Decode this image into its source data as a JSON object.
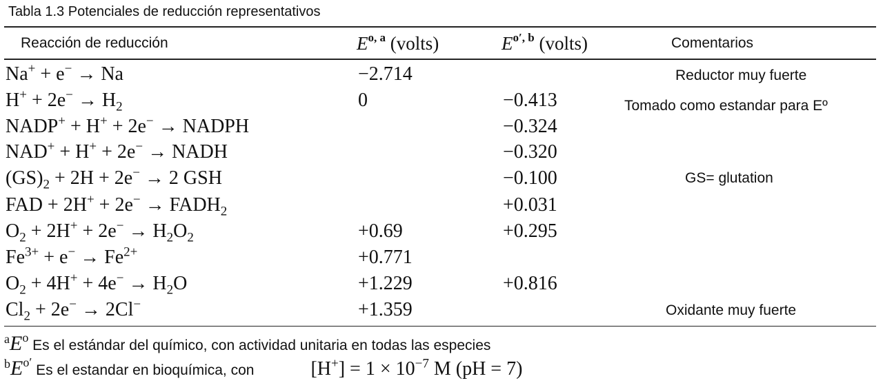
{
  "title": "Tabla 1.3 Potenciales de reducción representativos",
  "headers": {
    "reaction": "Reacción de reducción",
    "e0_symbol": "E",
    "e0_sup": "o, a",
    "e0_unit": " (volts)",
    "e0p_symbol": "E",
    "e0p_sup": "o′, b",
    "e0p_unit": " (volts)",
    "comments": "Comentarios"
  },
  "rows": [
    {
      "e0": "−2.714",
      "e0p": "",
      "comment": "Reductor muy fuerte"
    },
    {
      "e0": "0",
      "e0p": "−0.413",
      "comment": "Tomado como estandar para Eº"
    },
    {
      "e0": "",
      "e0p": "−0.324",
      "comment": ""
    },
    {
      "e0": "",
      "e0p": "−0.320",
      "comment": ""
    },
    {
      "e0": "",
      "e0p": "−0.100",
      "comment": "GS= glutation"
    },
    {
      "e0": "",
      "e0p": "+0.031",
      "comment": ""
    },
    {
      "e0": "+0.69",
      "e0p": "+0.295",
      "comment": ""
    },
    {
      "e0": "+0.771",
      "e0p": "",
      "comment": ""
    },
    {
      "e0": "+1.229",
      "e0p": "+0.816",
      "comment": ""
    },
    {
      "e0": "+1.359",
      "e0p": "",
      "comment": "Oxidante muy fuerte"
    }
  ],
  "reactions": [
    {
      "p1": "Na",
      "s1": "+",
      "p2": " + e",
      "s2": "−",
      "p3": " → Na"
    },
    {
      "p1": "H",
      "s1": "+",
      "p2": " + 2e",
      "s2": "−",
      "p3": " → H",
      "b1": "2"
    },
    {
      "p1": "NADP",
      "s1": "+",
      "p2": " + H",
      "s2": "+",
      "p3": " + 2e",
      "s3": "−",
      "p4": " → NADPH"
    },
    {
      "p1": "NAD",
      "s1": "+",
      "p2": " + H",
      "s2": "+",
      "p3": " + 2e",
      "s3": "−",
      "p4": " → NADH"
    },
    {
      "p1": "(GS)",
      "b1": "2",
      "p2": " + 2H + 2e",
      "s2": "−",
      "p3": " → 2 GSH"
    },
    {
      "p1": "FAD + 2H",
      "s1": "+",
      "p2": " + 2e",
      "s2": "−",
      "p3": " → FADH",
      "b3": "2"
    },
    {
      "p1": "O",
      "b1": "2",
      "p2": " + 2H",
      "s2": "+",
      "p3": " + 2e",
      "s3": "−",
      "p4": " → H",
      "b4": "2",
      "p5": "O",
      "b5": "2"
    },
    {
      "p1": "Fe",
      "s1": "3+",
      "p2": " + e",
      "s2": "−",
      "p3": " → Fe",
      "s3": "2+"
    },
    {
      "p1": "O",
      "b1": "2",
      "p2": " + 4H",
      "s2": "+",
      "p3": " + 4e",
      "s3": "−",
      "p4": " → H",
      "b4": "2",
      "p5": "O"
    },
    {
      "p1": "Cl",
      "b1": "2",
      "p2": " + 2e",
      "s2": "−",
      "p3": " → 2Cl",
      "s3": "−"
    }
  ],
  "footnotes": {
    "a_letter": "a",
    "a_symbol": "E",
    "a_sup": "o",
    "a_text": " Es el estándar del químico, con actividad unitaria en todas las especies",
    "b_letter": "b",
    "b_symbol": "E",
    "b_sup": "o′",
    "b_text": " Es el estandar en bioquímica, con",
    "b_formula_pre": "[H",
    "b_formula_sup1": "+",
    "b_formula_mid": "] = 1 × 10",
    "b_formula_sup2": "−7",
    "b_formula_post": " M (pH = 7)"
  }
}
